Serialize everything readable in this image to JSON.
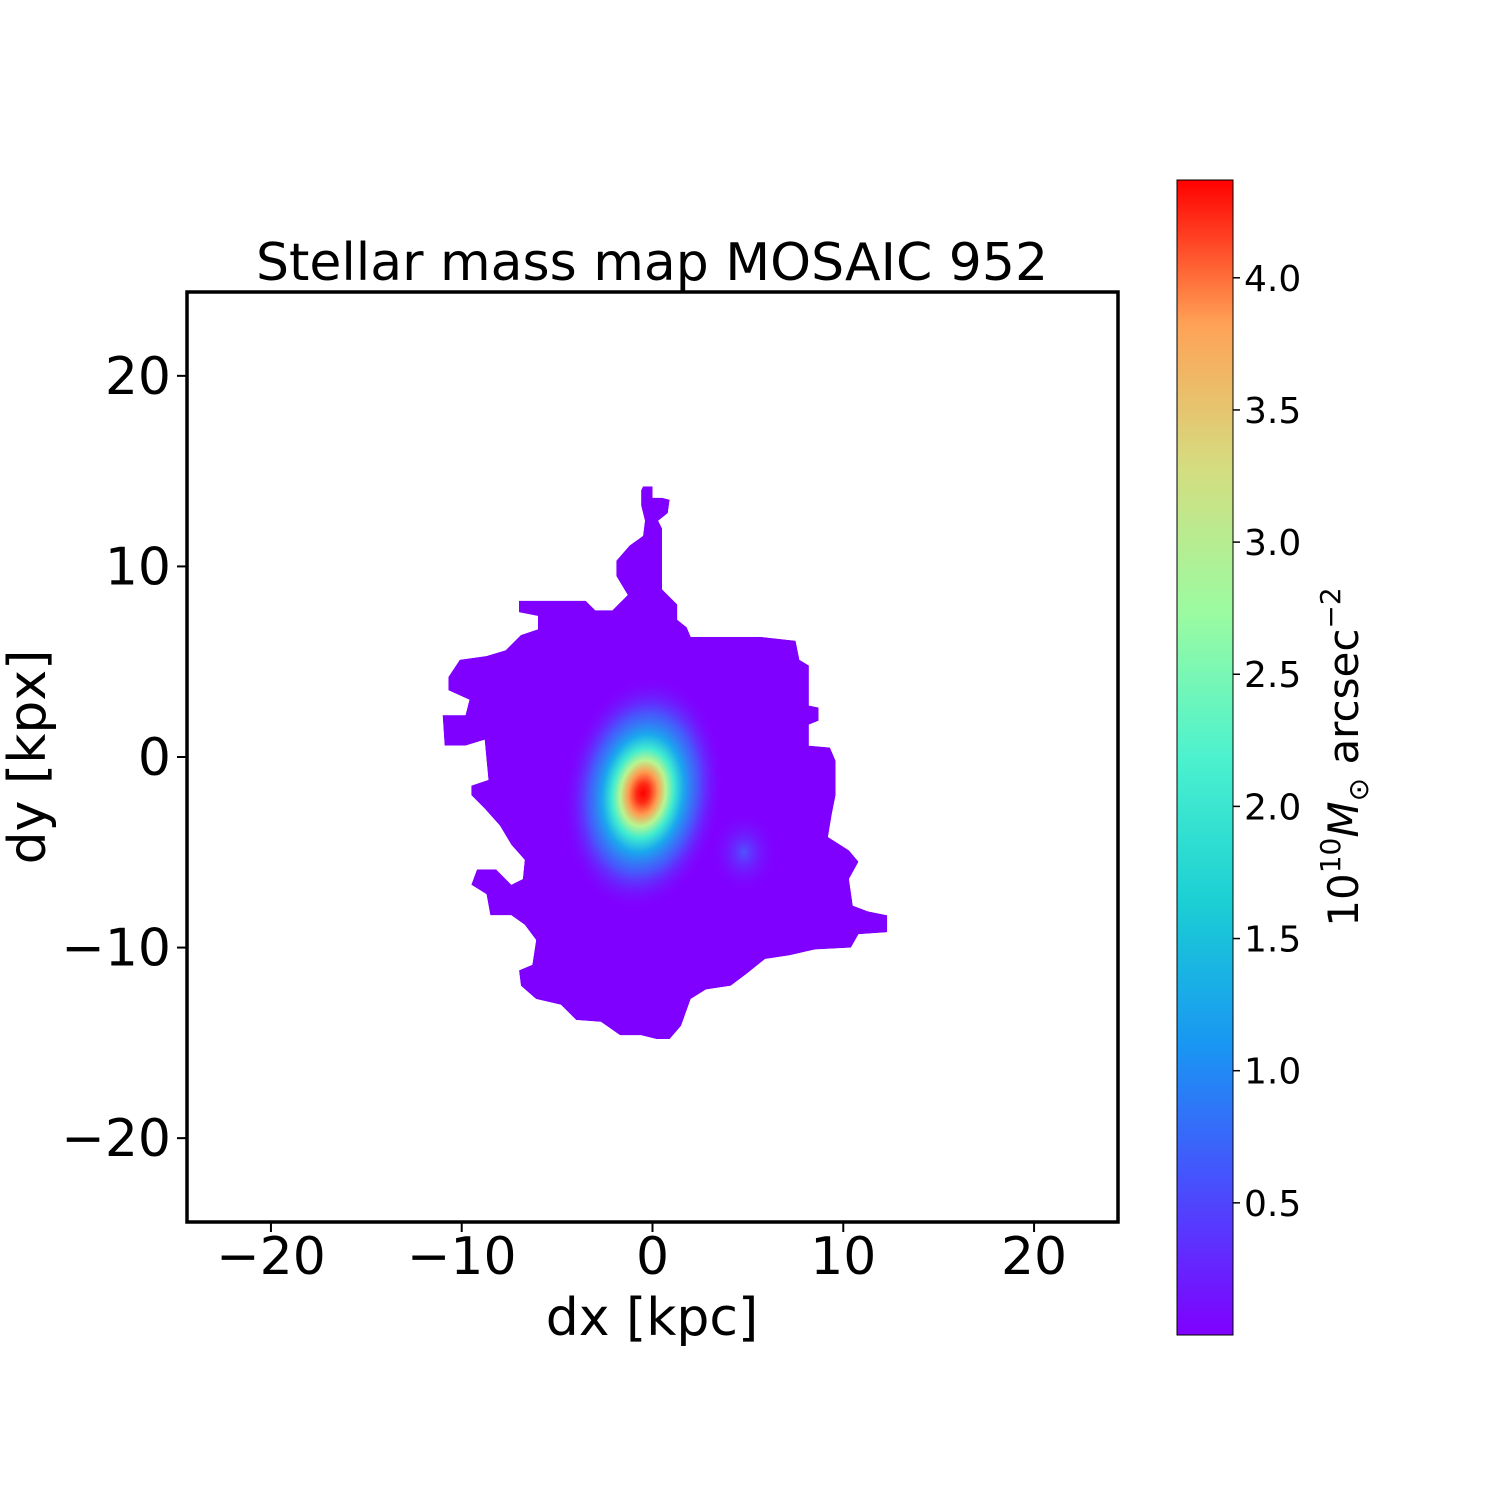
{
  "chart_data": {
    "type": "heatmap",
    "title": "Stellar mass map MOSAIC 952",
    "xlabel": "dx [kpc]",
    "ylabel": "dy [kpx]",
    "xlim": [
      -24.4,
      24.4
    ],
    "ylim": [
      -24.4,
      24.4
    ],
    "xticks": [
      -20,
      -10,
      0,
      10,
      20
    ],
    "yticks": [
      -20,
      -10,
      0,
      10,
      20
    ],
    "xtick_labels": [
      "−20",
      "−10",
      "0",
      "10",
      "20"
    ],
    "ytick_labels": [
      "−20",
      "−10",
      "0",
      "10",
      "20"
    ],
    "grid": false,
    "colormap": "rainbow",
    "colorbar": {
      "label_prefix": "10",
      "label_exp": "10",
      "label_sym": "M",
      "label_sub": "⊙",
      "label_unit": " arcsec",
      "label_unit_exp": "−2",
      "range": [
        0.0,
        4.37
      ],
      "ticks": [
        0.5,
        1.0,
        1.5,
        2.0,
        2.5,
        3.0,
        3.5,
        4.0
      ],
      "tick_labels": [
        "0.5",
        "1.0",
        "1.5",
        "2.0",
        "2.5",
        "3.0",
        "3.5",
        "4.0"
      ]
    },
    "background_value": 0.0,
    "peaks": [
      {
        "dx": -0.5,
        "dy": -1.9,
        "value": 4.37
      },
      {
        "dx": 4.8,
        "dy": -5.0,
        "value": 0.5
      }
    ],
    "outline": [
      [
        -0.5,
        14.2
      ],
      [
        0,
        14.2
      ],
      [
        0,
        13.6
      ],
      [
        0.5,
        13.6
      ],
      [
        0.9,
        13.5
      ],
      [
        0.8,
        12.8
      ],
      [
        0.3,
        12.4
      ],
      [
        0.5,
        12.0
      ],
      [
        0.5,
        8.8
      ],
      [
        1.3,
        8.0
      ],
      [
        1.3,
        7.2
      ],
      [
        1.8,
        6.8
      ],
      [
        2.0,
        6.3
      ],
      [
        5.7,
        6.3
      ],
      [
        7.5,
        6.1
      ],
      [
        7.7,
        5.1
      ],
      [
        8.2,
        4.8
      ],
      [
        8.2,
        2.7
      ],
      [
        8.7,
        2.6
      ],
      [
        8.7,
        1.9
      ],
      [
        8.2,
        1.7
      ],
      [
        8.2,
        0.6
      ],
      [
        9.3,
        0.5
      ],
      [
        9.6,
        -0.2
      ],
      [
        9.6,
        -2.0
      ],
      [
        9.4,
        -3.0
      ],
      [
        9.2,
        -4.2
      ],
      [
        10.3,
        -4.9
      ],
      [
        10.8,
        -5.5
      ],
      [
        10.3,
        -6.4
      ],
      [
        10.5,
        -7.8
      ],
      [
        11.3,
        -8.1
      ],
      [
        12.3,
        -8.3
      ],
      [
        12.3,
        -9.2
      ],
      [
        10.8,
        -9.3
      ],
      [
        10.4,
        -10.0
      ],
      [
        8.5,
        -10.1
      ],
      [
        7.2,
        -10.4
      ],
      [
        5.9,
        -10.6
      ],
      [
        4.9,
        -11.4
      ],
      [
        4.1,
        -12.0
      ],
      [
        2.8,
        -12.2
      ],
      [
        2.0,
        -12.7
      ],
      [
        1.5,
        -14.1
      ],
      [
        0.9,
        -14.8
      ],
      [
        0.2,
        -14.8
      ],
      [
        -0.6,
        -14.6
      ],
      [
        -1.7,
        -14.6
      ],
      [
        -2.7,
        -13.9
      ],
      [
        -4.0,
        -13.8
      ],
      [
        -4.8,
        -13.0
      ],
      [
        -6.1,
        -12.7
      ],
      [
        -6.9,
        -12.0
      ],
      [
        -7.0,
        -11.2
      ],
      [
        -6.3,
        -10.9
      ],
      [
        -6.1,
        -9.6
      ],
      [
        -6.7,
        -8.8
      ],
      [
        -7.4,
        -8.3
      ],
      [
        -8.5,
        -8.3
      ],
      [
        -8.7,
        -7.2
      ],
      [
        -9.5,
        -6.7
      ],
      [
        -9.2,
        -5.9
      ],
      [
        -8.2,
        -5.9
      ],
      [
        -7.4,
        -6.7
      ],
      [
        -6.8,
        -6.4
      ],
      [
        -6.7,
        -5.4
      ],
      [
        -7.4,
        -4.6
      ],
      [
        -8.0,
        -3.6
      ],
      [
        -8.8,
        -2.7
      ],
      [
        -9.5,
        -2.0
      ],
      [
        -9.5,
        -1.5
      ],
      [
        -8.6,
        -1.2
      ],
      [
        -8.8,
        0.9
      ],
      [
        -9.8,
        0.6
      ],
      [
        -10.9,
        0.6
      ],
      [
        -11.0,
        2.2
      ],
      [
        -9.8,
        2.2
      ],
      [
        -9.6,
        3.0
      ],
      [
        -10.7,
        3.5
      ],
      [
        -10.7,
        4.2
      ],
      [
        -10.1,
        5.1
      ],
      [
        -8.7,
        5.3
      ],
      [
        -7.7,
        5.6
      ],
      [
        -6.9,
        6.4
      ],
      [
        -6.0,
        6.7
      ],
      [
        -6.0,
        7.4
      ],
      [
        -7.0,
        7.6
      ],
      [
        -7.0,
        8.2
      ],
      [
        -3.5,
        8.2
      ],
      [
        -3.0,
        7.7
      ],
      [
        -2.1,
        7.7
      ],
      [
        -1.3,
        8.5
      ],
      [
        -1.9,
        9.5
      ],
      [
        -1.9,
        10.3
      ],
      [
        -1.2,
        11.1
      ],
      [
        -0.5,
        11.6
      ],
      [
        -0.4,
        12.4
      ],
      [
        -0.6,
        13.2
      ],
      [
        -0.6,
        14.0
      ]
    ]
  }
}
